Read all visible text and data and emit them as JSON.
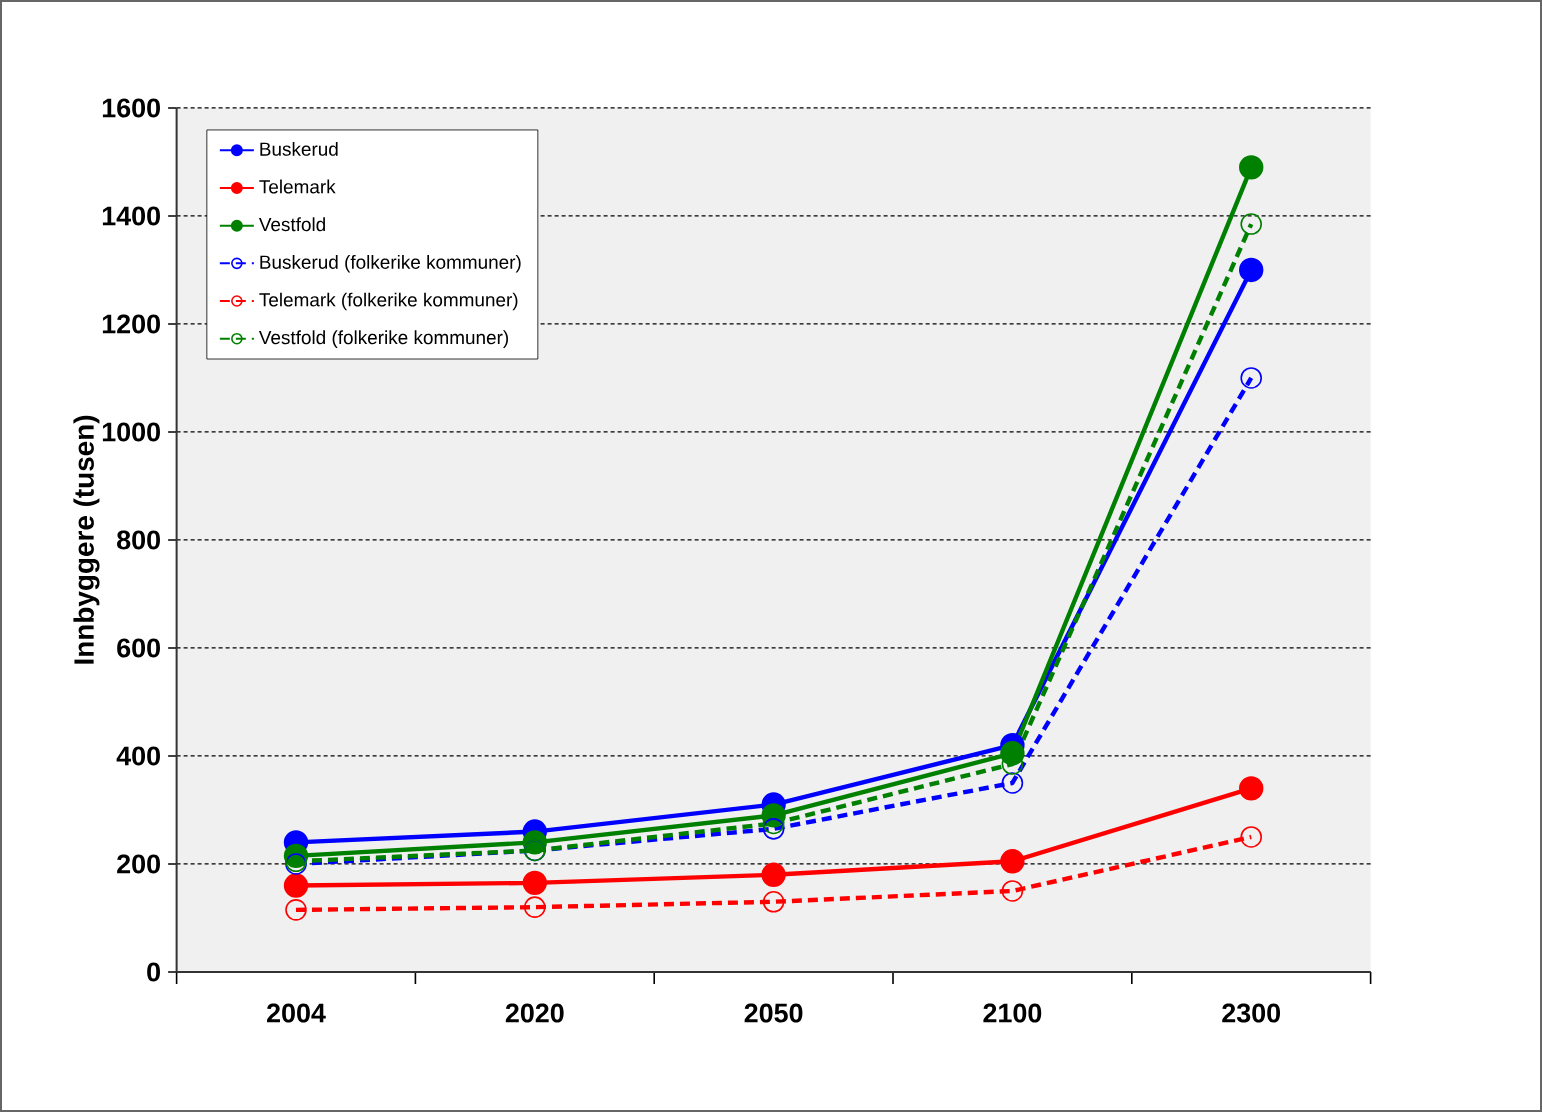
{
  "chart_data": {
    "type": "line",
    "ylabel": "Innbyggere (tusen)",
    "categories": [
      "2004",
      "2020",
      "2050",
      "2100",
      "2300"
    ],
    "series": [
      {
        "name": "Buskerud",
        "color": "#0000ff",
        "line_style": "solid",
        "values": [
          240,
          260,
          310,
          420,
          1300
        ]
      },
      {
        "name": "Telemark",
        "color": "#ff0000",
        "line_style": "solid",
        "values": [
          160,
          165,
          180,
          205,
          340
        ]
      },
      {
        "name": "Vestfold",
        "color": "#008000",
        "line_style": "solid",
        "values": [
          215,
          240,
          290,
          405,
          1490
        ]
      },
      {
        "name": "Buskerud (folkerike kommuner)",
        "color": "#0000ff",
        "line_style": "dashed",
        "values": [
          200,
          225,
          265,
          350,
          1100
        ]
      },
      {
        "name": "Telemark (folkerike kommuner)",
        "color": "#ff0000",
        "line_style": "dashed",
        "values": [
          115,
          120,
          130,
          150,
          250
        ]
      },
      {
        "name": "Vestfold (folkerike kommuner)",
        "color": "#008000",
        "line_style": "dashed",
        "values": [
          205,
          225,
          275,
          385,
          1385
        ]
      }
    ],
    "ylim": [
      0,
      1600
    ],
    "yticks": [
      0,
      200,
      400,
      600,
      800,
      1000,
      1200,
      1400,
      1600
    ],
    "grid": "y",
    "legend": "top left",
    "marker": "circle"
  }
}
